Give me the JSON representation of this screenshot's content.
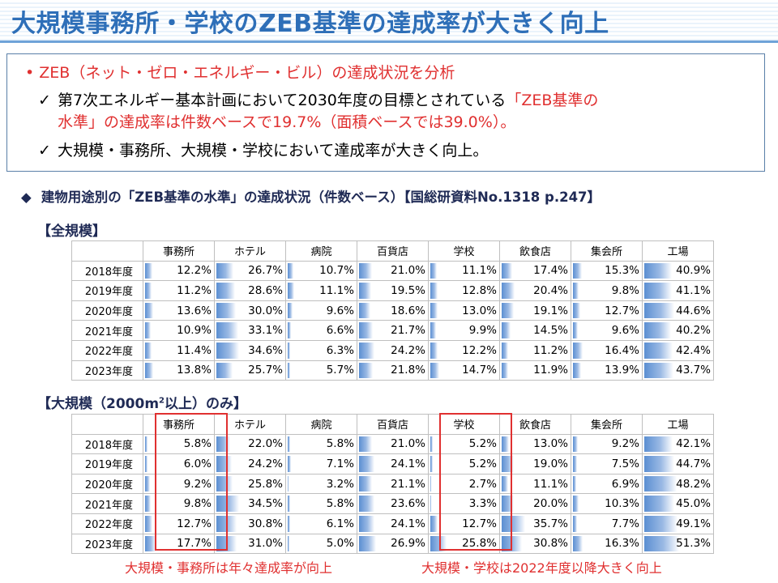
{
  "title": "大規模事務所・学校のZEB基準の達成率が大きく向上",
  "summary": {
    "bullet": "ZEB（ネット・ゼロ・エネルギー・ビル）の達成状況を分析",
    "check1_a": "第7次エネルギー基本計画において2030年度の目標とされている",
    "check1_b": "「ZEB基準の",
    "check1_c": "水準」の達成率は件数ベースで19.7%（面積ベースでは39.0%）。",
    "check2": "大規模・事務所、大規模・学校において達成率が大きく向上。"
  },
  "subheading": "建物用途別の「ZEB基準の水準」の達成状況（件数ベース）【国総研資料No.1318 p.247】",
  "table_all": {
    "label": "【全規模】",
    "headers": [
      "事務所",
      "ホテル",
      "病院",
      "百貨店",
      "学校",
      "飲食店",
      "集会所",
      "工場"
    ],
    "rows": [
      {
        "year": "2018年度",
        "values": [
          "12.2%",
          "26.7%",
          "10.7%",
          "21.0%",
          "11.1%",
          "17.4%",
          "15.3%",
          "40.9%"
        ],
        "fill": [
          12.2,
          26.7,
          10.7,
          21.0,
          11.1,
          17.4,
          15.3,
          40.9
        ]
      },
      {
        "year": "2019年度",
        "values": [
          "11.2%",
          "28.6%",
          "11.1%",
          "19.5%",
          "12.8%",
          "20.4%",
          "9.8%",
          "41.1%"
        ],
        "fill": [
          11.2,
          28.6,
          11.1,
          19.5,
          12.8,
          20.4,
          9.8,
          41.1
        ]
      },
      {
        "year": "2020年度",
        "values": [
          "13.6%",
          "30.0%",
          "9.6%",
          "18.6%",
          "13.0%",
          "19.1%",
          "12.7%",
          "44.6%"
        ],
        "fill": [
          13.6,
          30.0,
          9.6,
          18.6,
          13.0,
          19.1,
          12.7,
          44.6
        ]
      },
      {
        "year": "2021年度",
        "values": [
          "10.9%",
          "33.1%",
          "6.6%",
          "21.7%",
          "9.9%",
          "14.5%",
          "9.6%",
          "40.2%"
        ],
        "fill": [
          10.9,
          33.1,
          6.6,
          21.7,
          9.9,
          14.5,
          9.6,
          40.2
        ]
      },
      {
        "year": "2022年度",
        "values": [
          "11.4%",
          "34.6%",
          "6.3%",
          "24.2%",
          "12.2%",
          "11.2%",
          "16.4%",
          "42.4%"
        ],
        "fill": [
          11.4,
          34.6,
          6.3,
          24.2,
          12.2,
          11.2,
          16.4,
          42.4
        ]
      },
      {
        "year": "2023年度",
        "values": [
          "13.8%",
          "25.7%",
          "5.7%",
          "21.8%",
          "14.7%",
          "11.9%",
          "13.9%",
          "43.7%"
        ],
        "fill": [
          13.8,
          25.7,
          5.7,
          21.8,
          14.7,
          11.9,
          13.9,
          43.7
        ]
      }
    ]
  },
  "table_large": {
    "label_a": "【大規模（2000m",
    "label_sup": "2",
    "label_b": "以上）のみ】",
    "headers": [
      "事務所",
      "ホテル",
      "病院",
      "百貨店",
      "学校",
      "飲食店",
      "集会所",
      "工場"
    ],
    "rows": [
      {
        "year": "2018年度",
        "values": [
          "5.8%",
          "22.0%",
          "5.8%",
          "21.0%",
          "5.2%",
          "13.0%",
          "9.2%",
          "42.1%"
        ],
        "fill": [
          5.8,
          22.0,
          5.8,
          21.0,
          5.2,
          13.0,
          9.2,
          42.1
        ]
      },
      {
        "year": "2019年度",
        "values": [
          "6.0%",
          "24.2%",
          "7.1%",
          "24.1%",
          "5.2%",
          "19.0%",
          "7.5%",
          "44.7%"
        ],
        "fill": [
          6.0,
          24.2,
          7.1,
          24.1,
          5.2,
          19.0,
          7.5,
          44.7
        ]
      },
      {
        "year": "2020年度",
        "values": [
          "9.2%",
          "25.8%",
          "3.2%",
          "21.1%",
          "2.7%",
          "11.1%",
          "6.9%",
          "48.2%"
        ],
        "fill": [
          9.2,
          25.8,
          3.2,
          21.1,
          2.7,
          11.1,
          6.9,
          48.2
        ]
      },
      {
        "year": "2021年度",
        "values": [
          "9.8%",
          "34.5%",
          "5.8%",
          "23.6%",
          "3.3%",
          "20.0%",
          "10.3%",
          "45.0%"
        ],
        "fill": [
          9.8,
          34.5,
          5.8,
          23.6,
          3.3,
          20.0,
          10.3,
          45.0
        ]
      },
      {
        "year": "2022年度",
        "values": [
          "12.7%",
          "30.8%",
          "6.1%",
          "24.1%",
          "12.7%",
          "35.7%",
          "7.7%",
          "49.1%"
        ],
        "fill": [
          12.7,
          30.8,
          6.1,
          24.1,
          12.7,
          35.7,
          7.7,
          49.1
        ]
      },
      {
        "year": "2023年度",
        "values": [
          "17.7%",
          "31.0%",
          "5.0%",
          "26.9%",
          "25.8%",
          "30.8%",
          "16.3%",
          "51.3%"
        ],
        "fill": [
          17.7,
          31.0,
          5.0,
          26.9,
          25.8,
          30.8,
          16.3,
          51.3
        ]
      }
    ]
  },
  "notes": {
    "office": "大規模・事務所は年々達成率が向上",
    "school": "大規模・学校は2022年度以降大きく向上"
  },
  "colors": {
    "title": "#2e6fb8",
    "accent_red": "#e03030",
    "bar": "#5b8fd2",
    "heading": "#1f2a55"
  }
}
